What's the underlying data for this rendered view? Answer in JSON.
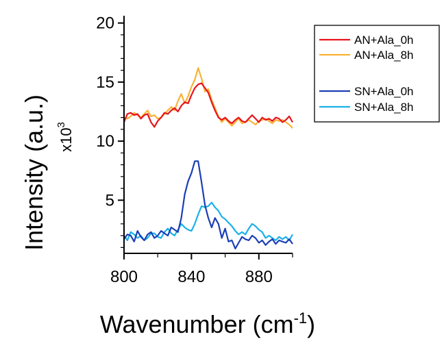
{
  "chart_data": {
    "type": "line",
    "xlabel": "Wavenumber (cm",
    "xlabel_superscript": "-1",
    "xlabel_suffix": ")",
    "ylabel": "Intensity (a.u.)",
    "y_multiplier": "x10",
    "y_multiplier_exponent": "3",
    "xlim": [
      800,
      900
    ],
    "ylim": [
      0.5,
      20.5
    ],
    "xticks": [
      "800",
      "840",
      "880"
    ],
    "xtick_values": [
      800,
      840,
      880
    ],
    "yticks": [
      "5",
      "10",
      "15",
      "20"
    ],
    "ytick_values": [
      5,
      10,
      15,
      20
    ],
    "grid": false,
    "legend_position": "right",
    "x": [
      800,
      802,
      804,
      806,
      808,
      810,
      812,
      814,
      816,
      818,
      820,
      822,
      824,
      826,
      828,
      830,
      832,
      834,
      836,
      838,
      840,
      842,
      844,
      846,
      848,
      850,
      852,
      854,
      856,
      858,
      860,
      862,
      864,
      866,
      868,
      870,
      872,
      874,
      876,
      878,
      880,
      882,
      884,
      886,
      888,
      890,
      892,
      894,
      896,
      898,
      900
    ],
    "series": [
      {
        "name": "AN+Ala_0h",
        "color": "#e8141c",
        "values": [
          11.6,
          12.3,
          12.4,
          12.2,
          12.3,
          11.9,
          12.2,
          12.3,
          11.6,
          11.2,
          11.7,
          12.0,
          12.4,
          12.3,
          12.6,
          12.8,
          12.5,
          13.0,
          13.3,
          13.2,
          13.9,
          14.5,
          14.8,
          14.9,
          14.5,
          14.1,
          13.3,
          12.6,
          12.0,
          11.8,
          12.0,
          11.7,
          11.5,
          11.8,
          12.0,
          11.7,
          11.6,
          11.9,
          12.2,
          11.9,
          11.6,
          12.0,
          11.8,
          11.9,
          11.7,
          12.0,
          11.9,
          11.6,
          11.8,
          12.1,
          11.6
        ]
      },
      {
        "name": "AN+Ala_8h",
        "color": "#f9b234",
        "values": [
          12.0,
          11.9,
          12.1,
          12.4,
          12.2,
          12.0,
          12.3,
          12.6,
          12.1,
          12.2,
          11.9,
          12.0,
          12.3,
          12.6,
          12.9,
          12.6,
          13.4,
          14.0,
          13.2,
          13.8,
          14.6,
          15.2,
          16.2,
          15.3,
          14.2,
          14.4,
          13.5,
          12.8,
          12.1,
          11.6,
          11.9,
          11.6,
          11.3,
          11.6,
          11.9,
          11.5,
          11.6,
          11.8,
          11.6,
          11.4,
          11.7,
          11.8,
          11.9,
          11.7,
          11.5,
          11.8,
          11.7,
          11.8,
          11.6,
          11.4,
          11.1
        ]
      },
      {
        "name": "SN+Ala_0h",
        "color": "#1a3fb5",
        "values": [
          1.7,
          2.1,
          2.0,
          1.5,
          2.4,
          1.9,
          1.6,
          2.1,
          2.3,
          1.8,
          2.0,
          2.4,
          2.2,
          2.0,
          2.7,
          2.5,
          2.3,
          3.5,
          5.5,
          6.6,
          7.3,
          8.3,
          8.3,
          6.5,
          4.6,
          3.5,
          2.7,
          3.5,
          3.0,
          1.8,
          2.6,
          1.5,
          1.6,
          0.9,
          1.4,
          1.9,
          1.7,
          1.6,
          2.0,
          1.8,
          1.4,
          1.6,
          1.2,
          1.5,
          1.7,
          1.3,
          1.6,
          1.5,
          1.4,
          1.7,
          1.3
        ]
      },
      {
        "name": "SN+Ala_8h",
        "color": "#1ab0ea",
        "values": [
          2.0,
          1.6,
          2.3,
          2.1,
          1.8,
          2.0,
          1.6,
          1.8,
          2.2,
          2.2,
          1.9,
          1.8,
          2.3,
          2.6,
          2.2,
          2.0,
          2.5,
          3.0,
          2.7,
          2.5,
          2.4,
          3.0,
          3.8,
          4.5,
          4.4,
          4.5,
          4.8,
          4.4,
          4.1,
          3.6,
          3.4,
          3.1,
          2.8,
          2.4,
          2.1,
          2.3,
          2.1,
          2.6,
          3.0,
          2.8,
          2.5,
          2.3,
          1.8,
          2.0,
          1.8,
          1.6,
          1.9,
          1.7,
          1.9,
          1.6,
          2.1
        ]
      }
    ]
  }
}
